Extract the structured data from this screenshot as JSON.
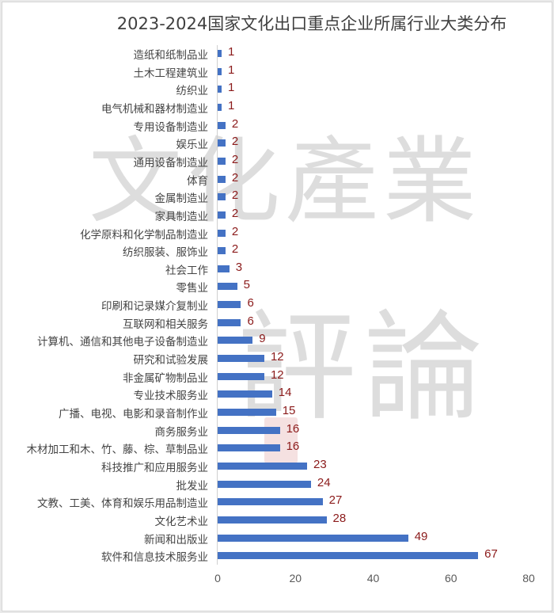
{
  "chart_data": {
    "type": "bar",
    "orientation": "horizontal",
    "title": "2023-2024国家文化出口重点企业所属行业大类分布",
    "xlabel": "",
    "ylabel": "",
    "xlim": [
      0,
      80
    ],
    "x_ticks": [
      "0",
      "20",
      "40",
      "60",
      "80"
    ],
    "grid": false,
    "legend": null,
    "bar_color": "#4472c4",
    "label_color": "#8b1a1a",
    "categories": [
      "造纸和纸制品业",
      "土木工程建筑业",
      "纺织业",
      "电气机械和器材制造业",
      "专用设备制造业",
      "娱乐业",
      "通用设备制造业",
      "体育",
      "金属制造业",
      "家具制造业",
      "化学原料和化学制品制造业",
      "纺织服装、服饰业",
      "社会工作",
      "零售业",
      "印刷和记录媒介复制业",
      "互联网和相关服务",
      "计算机、通信和其他电子设备制造业",
      "研究和试验发展",
      "非金属矿物制品业",
      "专业技术服务业",
      "广播、电视、电影和录音制作业",
      "商务服务业",
      "木材加工和木、竹、藤、棕、草制品业",
      "科技推广和应用服务业",
      "批发业",
      "文教、工美、体育和娱乐用品制造业",
      "文化艺术业",
      "新闻和出版业",
      "软件和信息技术服务业"
    ],
    "values": [
      1,
      1,
      1,
      1,
      2,
      2,
      2,
      2,
      2,
      2,
      2,
      2,
      3,
      5,
      6,
      6,
      9,
      12,
      12,
      14,
      15,
      16,
      16,
      23,
      24,
      27,
      28,
      49,
      67
    ]
  },
  "watermark": {
    "line1": "文化產業",
    "line2": "評論"
  }
}
